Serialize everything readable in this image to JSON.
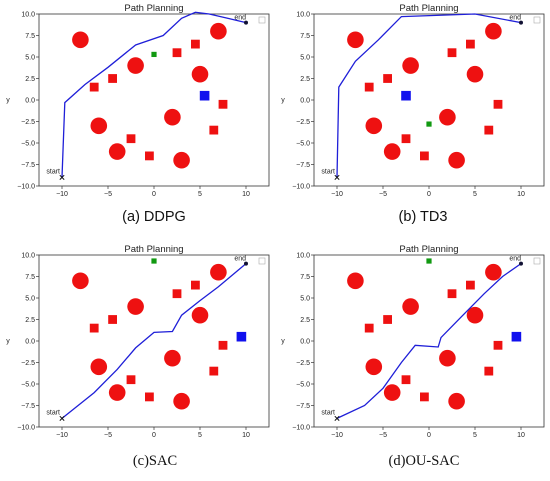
{
  "colors": {
    "path": "#1f1fd8",
    "obstacle": "#ee1111",
    "blue_box": "#1010ee",
    "green_box": "#119911",
    "endpoint": "#111133"
  },
  "common": {
    "title": "Path Planning",
    "xlabel": "x",
    "ylabel": "y",
    "start_label": "start",
    "end_label": "end",
    "xlim": [
      -12.5,
      12.5
    ],
    "ylim": [
      -10,
      10
    ],
    "xticks": [
      -10,
      -5,
      0,
      5,
      10
    ],
    "yticks": [
      -10,
      -7.5,
      -5,
      -2.5,
      0,
      2.5,
      5,
      7.5,
      10
    ],
    "tick_labels": {
      "x": [
        "−10",
        "−5",
        "0",
        "5",
        "10"
      ],
      "y": [
        "−10.0",
        "−7.5",
        "−5.0",
        "−2.5",
        "0.0",
        "2.5",
        "5.0",
        "7.5",
        "10.0"
      ]
    },
    "start": [
      -10,
      -9
    ],
    "end": [
      10,
      9
    ]
  },
  "panels": [
    {
      "caption": "(a) DDPG",
      "serif": false,
      "chart_data": {
        "type": "scatter",
        "path": [
          [
            -10,
            -9
          ],
          [
            -9.7,
            -0.3
          ],
          [
            -7.5,
            1.8
          ],
          [
            -5,
            3.8
          ],
          [
            -2,
            6.4
          ],
          [
            1,
            7.5
          ],
          [
            3,
            9.5
          ],
          [
            4.5,
            10.2
          ],
          [
            6,
            10
          ],
          [
            8,
            9.5
          ],
          [
            10,
            9
          ]
        ],
        "circles": [
          [
            -8,
            7
          ],
          [
            -6,
            -3
          ],
          [
            -2,
            4
          ],
          [
            -4,
            -6
          ],
          [
            2,
            -2
          ],
          [
            3,
            -7
          ],
          [
            5,
            3
          ],
          [
            7,
            8
          ]
        ],
        "squares": [
          [
            -6.5,
            1.5
          ],
          [
            -4.5,
            2.5
          ],
          [
            -2.5,
            -4.5
          ],
          [
            -0.5,
            -6.5
          ],
          [
            2.5,
            5.5
          ],
          [
            4.5,
            6.5
          ],
          [
            6.5,
            -3.5
          ],
          [
            7.5,
            -0.5
          ]
        ],
        "blue": [
          [
            5.5,
            0.5
          ]
        ],
        "green": [
          [
            0,
            5.3
          ]
        ]
      }
    },
    {
      "caption": "(b) TD3",
      "serif": false,
      "chart_data": {
        "type": "scatter",
        "path": [
          [
            -10,
            -9
          ],
          [
            -9.8,
            1.5
          ],
          [
            -8,
            4.5
          ],
          [
            -5.5,
            7
          ],
          [
            -3,
            9.7
          ],
          [
            5,
            10
          ],
          [
            10,
            9
          ]
        ],
        "circles": [
          [
            -8,
            7
          ],
          [
            -6,
            -3
          ],
          [
            -2,
            4
          ],
          [
            -4,
            -6
          ],
          [
            2,
            -2
          ],
          [
            3,
            -7
          ],
          [
            5,
            3
          ],
          [
            7,
            8
          ]
        ],
        "squares": [
          [
            -6.5,
            1.5
          ],
          [
            -4.5,
            2.5
          ],
          [
            -2.5,
            -4.5
          ],
          [
            -0.5,
            -6.5
          ],
          [
            2.5,
            5.5
          ],
          [
            4.5,
            6.5
          ],
          [
            6.5,
            -3.5
          ],
          [
            7.5,
            -0.5
          ]
        ],
        "blue": [
          [
            -2.5,
            0.5
          ]
        ],
        "green": [
          [
            0,
            -2.8
          ]
        ]
      }
    },
    {
      "caption": "(c)SAC",
      "serif": true,
      "chart_data": {
        "type": "scatter",
        "path": [
          [
            -10,
            -9
          ],
          [
            -6.5,
            -6
          ],
          [
            -4,
            -3.3
          ],
          [
            -2,
            -0.8
          ],
          [
            0,
            1
          ],
          [
            2,
            1.1
          ],
          [
            3,
            3
          ],
          [
            5,
            4.7
          ],
          [
            7,
            6.3
          ],
          [
            10,
            9
          ]
        ],
        "circles": [
          [
            -8,
            7
          ],
          [
            -6,
            -3
          ],
          [
            -2,
            4
          ],
          [
            -4,
            -6
          ],
          [
            2,
            -2
          ],
          [
            3,
            -7
          ],
          [
            5,
            3
          ],
          [
            7,
            8
          ]
        ],
        "squares": [
          [
            -6.5,
            1.5
          ],
          [
            -4.5,
            2.5
          ],
          [
            -2.5,
            -4.5
          ],
          [
            -0.5,
            -6.5
          ],
          [
            2.5,
            5.5
          ],
          [
            4.5,
            6.5
          ],
          [
            6.5,
            -3.5
          ],
          [
            7.5,
            -0.5
          ]
        ],
        "blue": [
          [
            9.5,
            0.5
          ]
        ],
        "green": [
          [
            0,
            9.3
          ]
        ]
      }
    },
    {
      "caption": "(d)OU-SAC",
      "serif": true,
      "chart_data": {
        "type": "scatter",
        "path": [
          [
            -10,
            -9
          ],
          [
            -7,
            -7.5
          ],
          [
            -5,
            -5.5
          ],
          [
            -3,
            -2.5
          ],
          [
            -1.5,
            -0.5
          ],
          [
            1,
            -0.7
          ],
          [
            1.3,
            0.4
          ],
          [
            3.5,
            2.8
          ],
          [
            6,
            5.5
          ],
          [
            8,
            7.5
          ],
          [
            10,
            9
          ]
        ],
        "circles": [
          [
            -8,
            7
          ],
          [
            -6,
            -3
          ],
          [
            -2,
            4
          ],
          [
            -4,
            -6
          ],
          [
            2,
            -2
          ],
          [
            3,
            -7
          ],
          [
            5,
            3
          ],
          [
            7,
            8
          ]
        ],
        "squares": [
          [
            -6.5,
            1.5
          ],
          [
            -4.5,
            2.5
          ],
          [
            -2.5,
            -4.5
          ],
          [
            -0.5,
            -6.5
          ],
          [
            2.5,
            5.5
          ],
          [
            4.5,
            6.5
          ],
          [
            6.5,
            -3.5
          ],
          [
            7.5,
            -0.5
          ]
        ],
        "blue": [
          [
            9.5,
            0.5
          ]
        ],
        "green": [
          [
            0,
            9.3
          ]
        ]
      }
    }
  ]
}
